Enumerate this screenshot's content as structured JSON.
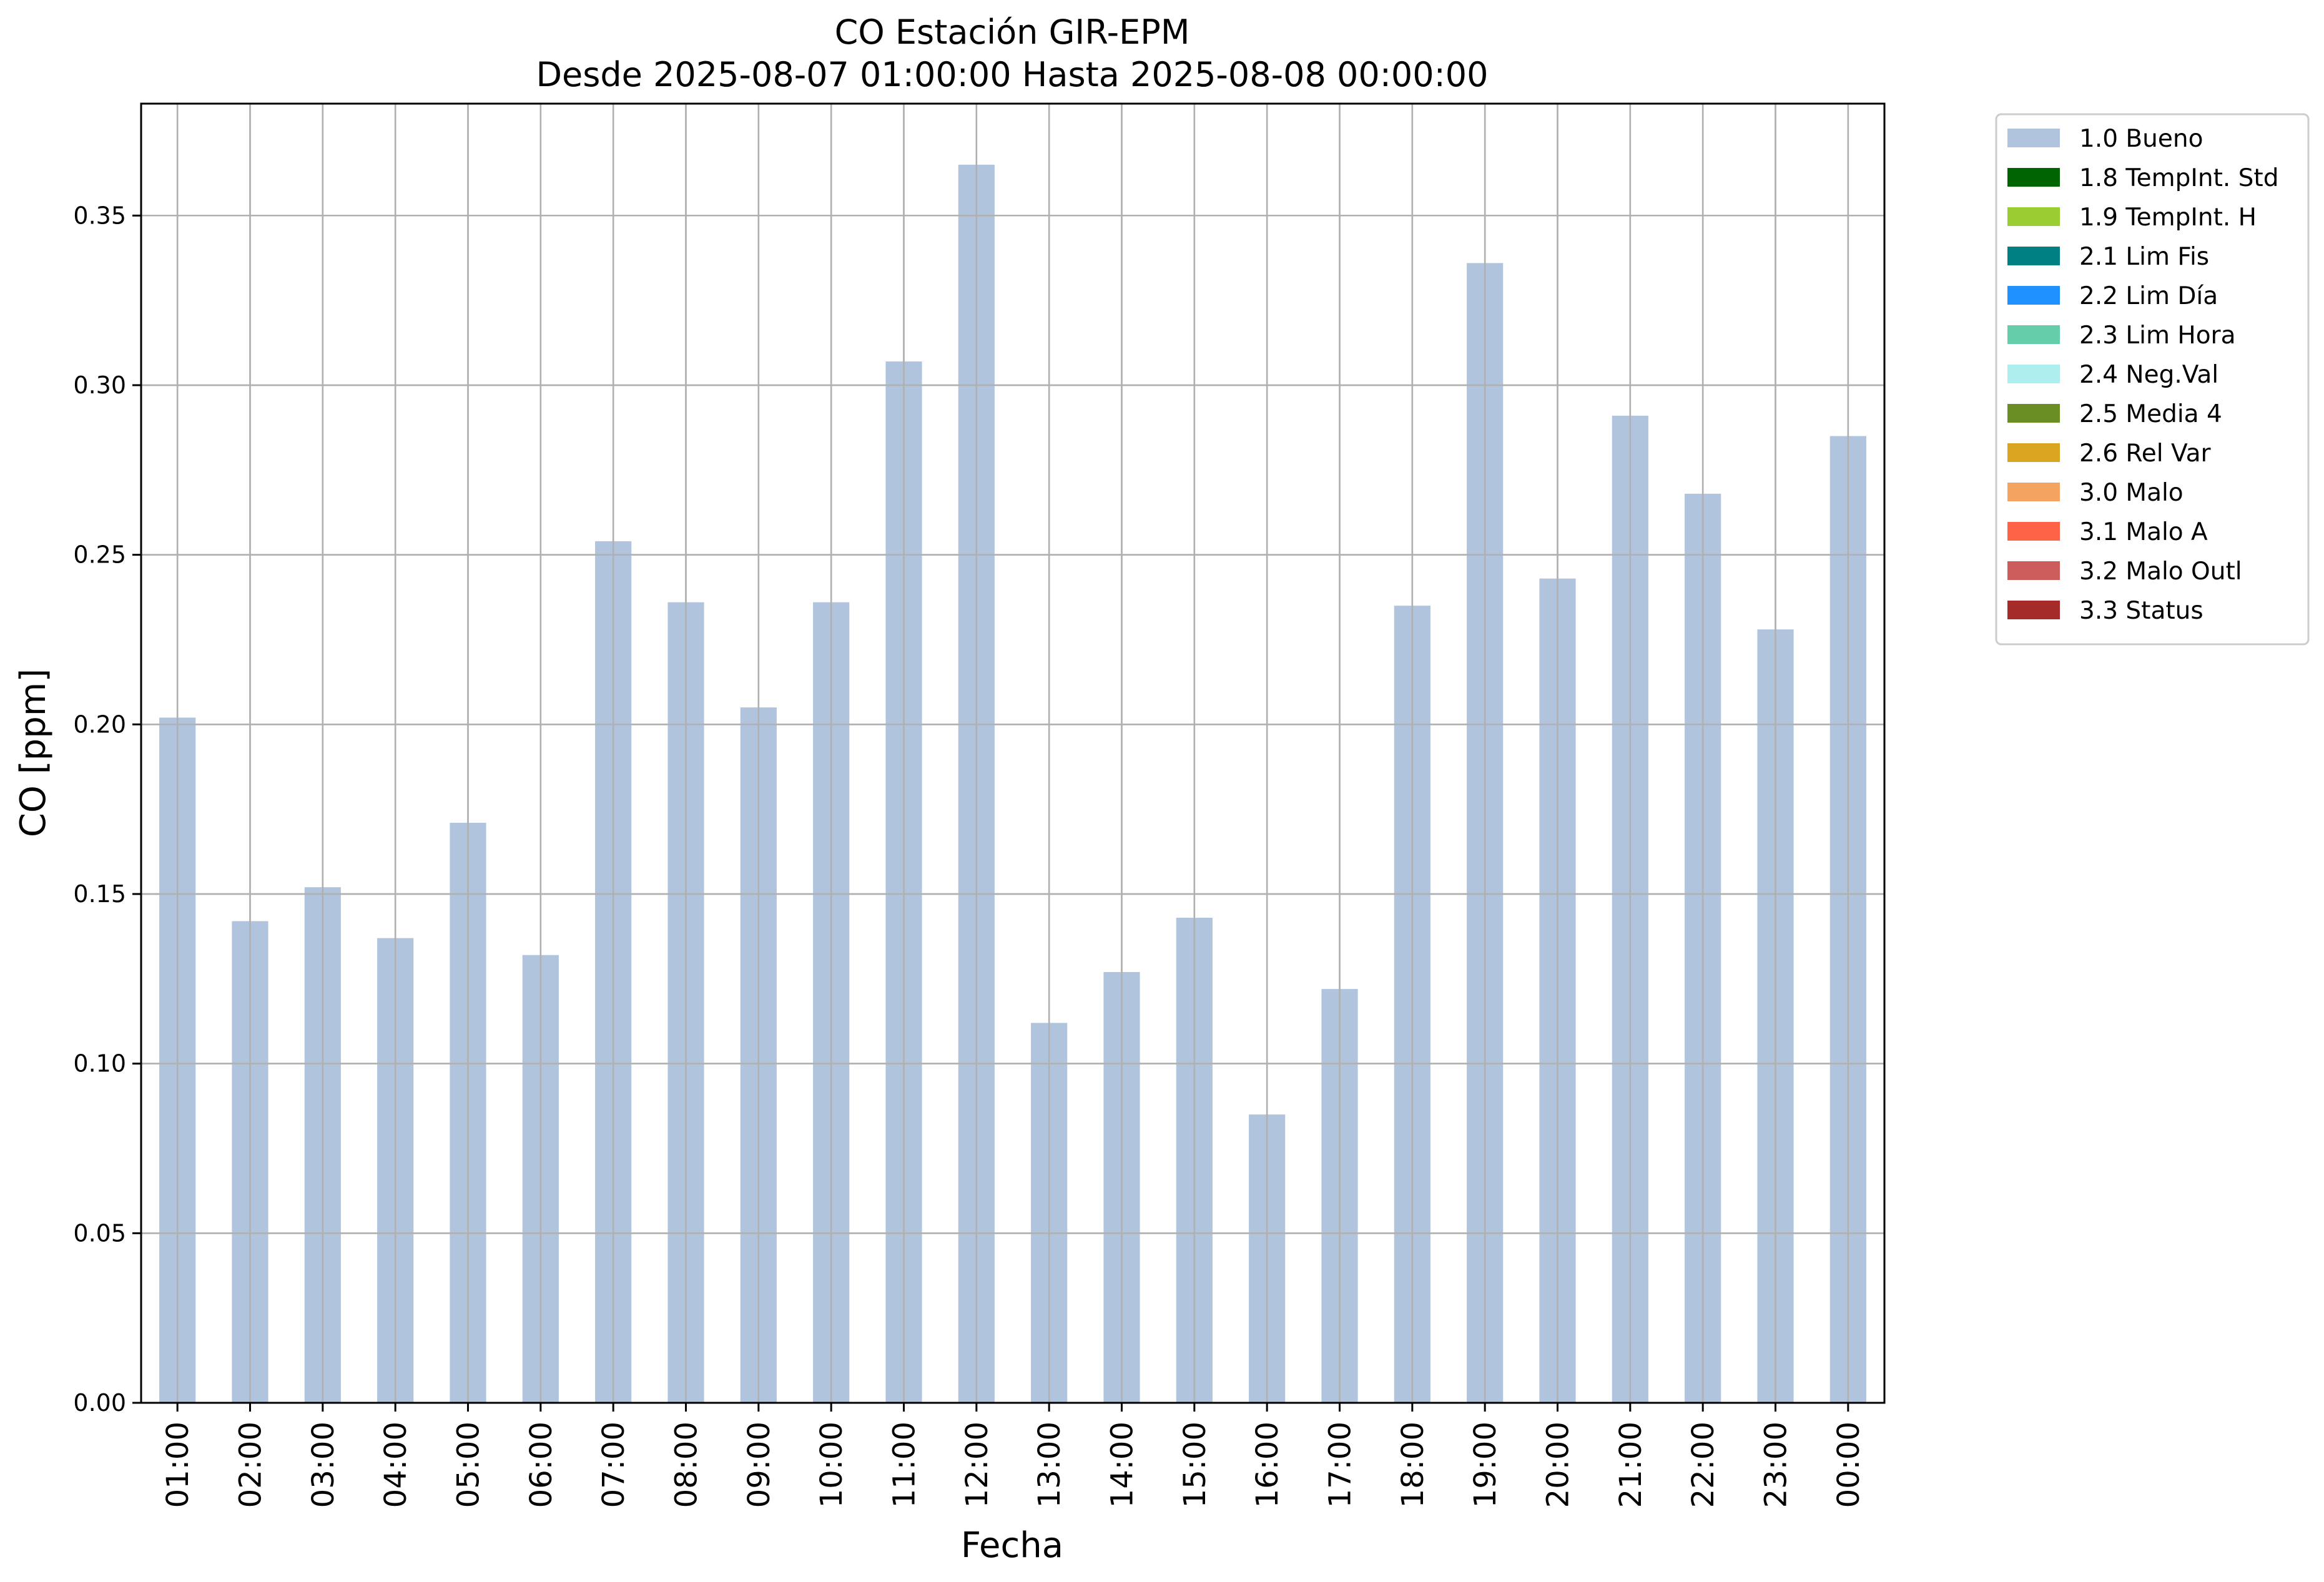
{
  "chart_data": {
    "type": "bar",
    "title": "CO Estación GIR-EPM",
    "subtitle": "Desde 2025-08-07 01:00:00 Hasta 2025-08-08 00:00:00",
    "xlabel": "Fecha",
    "ylabel": "CO [ppm]",
    "ylim": [
      0,
      0.383
    ],
    "yticks": [
      "0.00",
      "0.05",
      "0.10",
      "0.15",
      "0.20",
      "0.25",
      "0.30",
      "0.35"
    ],
    "grid": true,
    "legend_position": "outside-top-right",
    "categories": [
      "01:00",
      "02:00",
      "03:00",
      "04:00",
      "05:00",
      "06:00",
      "07:00",
      "08:00",
      "09:00",
      "10:00",
      "11:00",
      "12:00",
      "13:00",
      "14:00",
      "15:00",
      "16:00",
      "17:00",
      "18:00",
      "19:00",
      "20:00",
      "21:00",
      "22:00",
      "23:00",
      "00:00"
    ],
    "series": [
      {
        "name": "1.0 Bueno",
        "color": "#b0c4de",
        "values": [
          0.202,
          0.142,
          0.152,
          0.137,
          0.171,
          0.132,
          0.254,
          0.236,
          0.205,
          0.236,
          0.307,
          0.365,
          0.112,
          0.127,
          0.143,
          0.085,
          0.122,
          0.235,
          0.336,
          0.243,
          0.291,
          0.268,
          0.228,
          0.285
        ]
      }
    ],
    "legend": [
      {
        "label": "1.0 Bueno",
        "color": "#b0c4de"
      },
      {
        "label": "1.8 TempInt. Std",
        "color": "#006400"
      },
      {
        "label": "1.9 TempInt. H",
        "color": "#9acd32"
      },
      {
        "label": "2.1 Lim Fis",
        "color": "#008080"
      },
      {
        "label": "2.2 Lim Día",
        "color": "#1e90ff"
      },
      {
        "label": "2.3 Lim Hora",
        "color": "#66cdaa"
      },
      {
        "label": "2.4 Neg.Val",
        "color": "#afeeee"
      },
      {
        "label": "2.5 Media 4",
        "color": "#6b8e23"
      },
      {
        "label": "2.6 Rel Var",
        "color": "#daa520"
      },
      {
        "label": "3.0 Malo",
        "color": "#f4a460"
      },
      {
        "label": "3.1 Malo A",
        "color": "#ff6347"
      },
      {
        "label": "3.2 Malo Outl",
        "color": "#cd5c5c"
      },
      {
        "label": "3.3 Status",
        "color": "#a52a2a"
      }
    ]
  }
}
